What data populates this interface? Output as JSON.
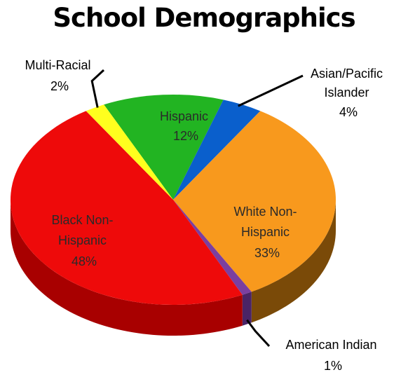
{
  "chart_data": {
    "type": "pie",
    "title": "School Demographics",
    "three_d": true,
    "slices": [
      {
        "label": "Hispanic",
        "value": 12,
        "value_label": "12%",
        "color": "#22b422",
        "side_color": "#137a13"
      },
      {
        "label": "Asian/Pacific Islander",
        "value": 4,
        "value_label": "4%",
        "color": "#0a5fcc",
        "side_color": "#063d85"
      },
      {
        "label": "White Non-Hispanic",
        "value": 33,
        "value_label": "33%",
        "color": "#f8991d",
        "side_color": "#7a4a08"
      },
      {
        "label": "American Indian",
        "value": 1,
        "value_label": "1%",
        "color": "#7b3fa0",
        "side_color": "#4a2466"
      },
      {
        "label": "Black Non-Hispanic",
        "value": 48,
        "value_label": "48%",
        "color": "#ee0a0a",
        "side_color": "#a80000"
      },
      {
        "label": "Multi-Racial",
        "value": 2,
        "value_label": "2%",
        "color": "#ffff1e",
        "side_color": "#b5b500"
      }
    ]
  }
}
